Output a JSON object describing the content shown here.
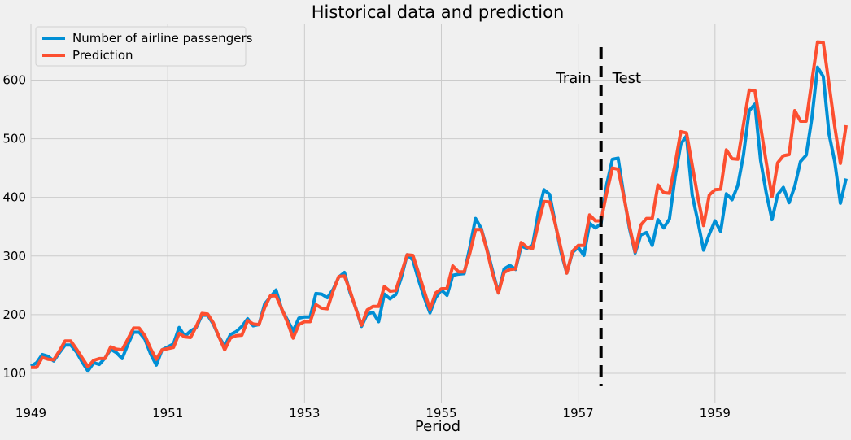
{
  "chart_data": {
    "type": "line",
    "title": "Historical data and prediction",
    "xlabel": "Period",
    "ylabel": "",
    "x_start": "1949-01",
    "x_end": "1960-12",
    "xlim": [
      1949.0,
      1960.917
    ],
    "ylim": [
      50,
      695
    ],
    "x_ticks": [
      "1949",
      "1951",
      "1953",
      "1955",
      "1957",
      "1959"
    ],
    "y_ticks": [
      100,
      200,
      300,
      400,
      500,
      600
    ],
    "grid": true,
    "legend_position": "top-left",
    "split_marker": "1957-05",
    "annotations": [
      "Train",
      "Test"
    ],
    "colors": {
      "actual": "#008fd5",
      "prediction": "#fc4f30",
      "split": "#000000",
      "background": "#f0f0f0",
      "grid": "#cbcbcb"
    },
    "series": [
      {
        "name": "Number of airline passengers",
        "values": [
          112,
          118,
          132,
          129,
          121,
          135,
          148,
          148,
          136,
          119,
          104,
          118,
          115,
          126,
          141,
          135,
          125,
          149,
          170,
          170,
          158,
          133,
          114,
          140,
          145,
          150,
          178,
          163,
          172,
          178,
          199,
          199,
          184,
          162,
          146,
          166,
          171,
          180,
          193,
          181,
          183,
          218,
          230,
          242,
          209,
          191,
          172,
          194,
          196,
          196,
          236,
          235,
          229,
          243,
          264,
          272,
          237,
          211,
          180,
          201,
          204,
          188,
          235,
          227,
          234,
          264,
          302,
          293,
          259,
          229,
          203,
          229,
          242,
          233,
          267,
          269,
          270,
          315,
          364,
          347,
          312,
          274,
          237,
          278,
          284,
          277,
          317,
          313,
          318,
          374,
          413,
          405,
          355,
          306,
          271,
          306,
          315,
          301,
          356,
          348,
          355,
          422,
          465,
          467,
          404,
          347,
          305,
          336,
          340,
          318,
          362,
          348,
          363,
          435,
          491,
          505,
          404,
          359,
          310,
          337,
          360,
          342,
          406,
          396,
          420,
          472,
          548,
          559,
          463,
          407,
          362,
          405,
          417,
          391,
          419,
          461,
          472,
          535,
          622,
          606,
          508,
          461,
          390,
          432
        ]
      },
      {
        "name": "Prediction",
        "values": [
          110,
          110,
          127,
          124,
          123,
          138,
          155,
          155,
          141,
          126,
          111,
          122,
          125,
          125,
          145,
          141,
          140,
          158,
          177,
          177,
          164,
          142,
          124,
          140,
          142,
          144,
          168,
          162,
          161,
          180,
          202,
          201,
          186,
          162,
          140,
          160,
          164,
          165,
          190,
          184,
          183,
          212,
          232,
          232,
          210,
          187,
          160,
          183,
          188,
          188,
          217,
          211,
          210,
          240,
          265,
          266,
          240,
          210,
          182,
          208,
          214,
          214,
          248,
          240,
          241,
          271,
          302,
          301,
          271,
          240,
          209,
          237,
          244,
          245,
          283,
          273,
          273,
          305,
          345,
          345,
          310,
          269,
          237,
          272,
          277,
          278,
          323,
          315,
          313,
          355,
          393,
          392,
          354,
          312,
          271,
          308,
          318,
          318,
          370,
          360,
          360,
          408,
          450,
          448,
          402,
          351,
          307,
          353,
          364,
          364,
          421,
          408,
          407,
          457,
          512,
          510,
          455,
          400,
          352,
          404,
          413,
          414,
          481,
          466,
          465,
          524,
          583,
          582,
          521,
          459,
          401,
          459,
          471,
          473,
          548,
          530,
          530,
          598,
          665,
          664,
          593,
          521,
          458,
          523
        ]
      }
    ]
  }
}
